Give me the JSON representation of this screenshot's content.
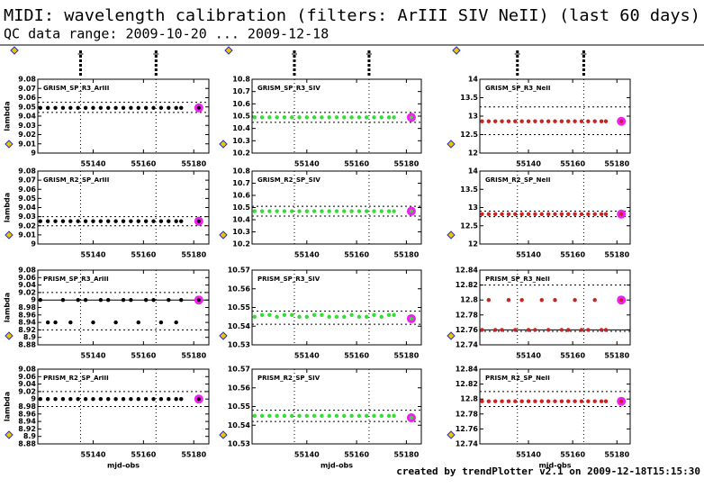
{
  "title": "MIDI: wavelength calibration (filters: ArIII SIV NeII) (last 60 days)",
  "subtitle": "QC data range: 2009-10-20 ... 2009-12-18",
  "footer": "created by trendPlotter v2.1 on 2009-12-18T15:15:30",
  "chart_data": [
    {
      "type": "scatter",
      "label": "GRISM_SP_R3_ArIII",
      "ylabel": "lambda",
      "color": "#000000",
      "latest_color": "#ee22ee",
      "x": [
        55119,
        55122,
        55125,
        55128,
        55131,
        55134,
        55137,
        55140,
        55143,
        55146,
        55149,
        55152,
        55155,
        55158,
        55161,
        55164,
        55167,
        55170,
        55173,
        55175,
        55182
      ],
      "values": [
        9.049,
        9.049,
        9.049,
        9.049,
        9.049,
        9.049,
        9.049,
        9.049,
        9.049,
        9.049,
        9.049,
        9.049,
        9.049,
        9.049,
        9.049,
        9.049,
        9.049,
        9.049,
        9.049,
        9.049,
        9.049
      ],
      "xlim": [
        55118,
        55186
      ],
      "xticks": [
        55140,
        55160,
        55180
      ],
      "ylim": [
        9,
        9.08
      ],
      "yticks": [
        9,
        9.01,
        9.02,
        9.03,
        9.04,
        9.05,
        9.06,
        9.07,
        9.08
      ],
      "limits": [
        9.044,
        9.055
      ],
      "vlines": [
        55135,
        55165
      ]
    },
    {
      "type": "scatter",
      "label": "GRISM_SP_R3_SIV",
      "color": "#33dd33",
      "latest_color": "#ee22ee",
      "x": [
        55119,
        55122,
        55125,
        55128,
        55131,
        55134,
        55137,
        55140,
        55143,
        55146,
        55149,
        55152,
        55155,
        55158,
        55161,
        55164,
        55167,
        55170,
        55173,
        55175,
        55182
      ],
      "values": [
        10.49,
        10.49,
        10.49,
        10.49,
        10.49,
        10.49,
        10.49,
        10.49,
        10.49,
        10.49,
        10.49,
        10.49,
        10.49,
        10.49,
        10.49,
        10.49,
        10.49,
        10.49,
        10.49,
        10.49,
        10.49
      ],
      "xlim": [
        55118,
        55186
      ],
      "xticks": [
        55140,
        55160,
        55180
      ],
      "ylim": [
        10.2,
        10.8
      ],
      "yticks": [
        10.2,
        10.3,
        10.4,
        10.5,
        10.6,
        10.7,
        10.8
      ],
      "limits": [
        10.45,
        10.53
      ],
      "vlines": [
        55135,
        55165
      ]
    },
    {
      "type": "scatter",
      "label": "GRISM_SP_R3_NeII",
      "color": "#cc2222",
      "latest_color": "#ee22ee",
      "x": [
        55119,
        55122,
        55125,
        55128,
        55131,
        55134,
        55137,
        55140,
        55143,
        55146,
        55149,
        55152,
        55155,
        55158,
        55161,
        55164,
        55167,
        55170,
        55173,
        55175,
        55182
      ],
      "values": [
        12.86,
        12.86,
        12.86,
        12.86,
        12.86,
        12.86,
        12.86,
        12.86,
        12.86,
        12.86,
        12.86,
        12.86,
        12.86,
        12.86,
        12.86,
        12.86,
        12.86,
        12.86,
        12.86,
        12.86,
        12.86
      ],
      "xlim": [
        55118,
        55186
      ],
      "xticks": [
        55140,
        55160,
        55180
      ],
      "ylim": [
        12,
        14
      ],
      "yticks": [
        12,
        12.5,
        13,
        13.5,
        14
      ],
      "limits": [
        12.5,
        13.25
      ],
      "vlines": [
        55135,
        55165
      ]
    },
    {
      "type": "scatter",
      "label": "GRISM_R2_SP_ArIII",
      "ylabel": "lambda",
      "color": "#000000",
      "latest_color": "#ee22ee",
      "x": [
        55119,
        55122,
        55125,
        55128,
        55131,
        55134,
        55137,
        55140,
        55143,
        55146,
        55149,
        55152,
        55155,
        55158,
        55161,
        55164,
        55167,
        55170,
        55173,
        55175,
        55182
      ],
      "values": [
        9.025,
        9.025,
        9.025,
        9.025,
        9.025,
        9.025,
        9.025,
        9.025,
        9.025,
        9.025,
        9.025,
        9.025,
        9.025,
        9.025,
        9.025,
        9.025,
        9.025,
        9.025,
        9.025,
        9.025,
        9.025
      ],
      "xlim": [
        55118,
        55186
      ],
      "xticks": [
        55140,
        55160,
        55180
      ],
      "ylim": [
        9,
        9.08
      ],
      "yticks": [
        9,
        9.01,
        9.02,
        9.03,
        9.04,
        9.05,
        9.06,
        9.07,
        9.08
      ],
      "limits": [
        9.02,
        9.03
      ],
      "vlines": [
        55135,
        55165
      ]
    },
    {
      "type": "scatter",
      "label": "GRISM_R2_SP_SIV",
      "color": "#33dd33",
      "latest_color": "#ee22ee",
      "x": [
        55119,
        55122,
        55125,
        55128,
        55131,
        55134,
        55137,
        55140,
        55143,
        55146,
        55149,
        55152,
        55155,
        55158,
        55161,
        55164,
        55167,
        55170,
        55173,
        55175,
        55182
      ],
      "values": [
        10.47,
        10.47,
        10.47,
        10.47,
        10.47,
        10.47,
        10.47,
        10.47,
        10.47,
        10.47,
        10.47,
        10.47,
        10.47,
        10.47,
        10.47,
        10.47,
        10.47,
        10.47,
        10.47,
        10.47,
        10.47
      ],
      "xlim": [
        55118,
        55186
      ],
      "xticks": [
        55140,
        55160,
        55180
      ],
      "ylim": [
        10.2,
        10.8
      ],
      "yticks": [
        10.2,
        10.3,
        10.4,
        10.5,
        10.6,
        10.7,
        10.8
      ],
      "limits": [
        10.43,
        10.51
      ],
      "vlines": [
        55135,
        55165
      ]
    },
    {
      "type": "scatter",
      "label": "GRISM_R2_SP_NeII",
      "color": "#cc2222",
      "latest_color": "#ee22ee",
      "x": [
        55119,
        55122,
        55125,
        55128,
        55131,
        55134,
        55137,
        55140,
        55143,
        55146,
        55149,
        55152,
        55155,
        55158,
        55161,
        55164,
        55167,
        55170,
        55173,
        55175,
        55182
      ],
      "values": [
        12.82,
        12.82,
        12.82,
        12.82,
        12.82,
        12.82,
        12.82,
        12.82,
        12.82,
        12.82,
        12.82,
        12.82,
        12.82,
        12.82,
        12.82,
        12.82,
        12.82,
        12.82,
        12.82,
        12.82,
        12.82
      ],
      "xlim": [
        55118,
        55186
      ],
      "xticks": [
        55140,
        55160,
        55180
      ],
      "ylim": [
        12,
        14
      ],
      "yticks": [
        12,
        12.5,
        13,
        13.5,
        14
      ],
      "limits": [
        12.75,
        12.9
      ],
      "vlines": [
        55135,
        55165
      ]
    },
    {
      "type": "scatter",
      "label": "PRISM_SP_R3_ArIII",
      "ylabel": "lambda",
      "color": "#000000",
      "latest_color": "#ee22ee",
      "x": [
        55119,
        55122,
        55125,
        55128,
        55131,
        55134,
        55137,
        55140,
        55143,
        55146,
        55149,
        55152,
        55155,
        55158,
        55161,
        55164,
        55167,
        55170,
        55173,
        55175,
        55182
      ],
      "values": [
        9,
        8.94,
        8.94,
        9,
        8.94,
        9,
        9,
        8.94,
        9,
        9,
        8.94,
        9,
        9,
        8.94,
        9,
        9,
        8.94,
        9,
        8.94,
        9,
        9
      ],
      "xlim": [
        55118,
        55186
      ],
      "xticks": [
        55140,
        55160,
        55180
      ],
      "ylim": [
        8.88,
        9.08
      ],
      "yticks": [
        8.88,
        8.9,
        8.92,
        8.94,
        8.96,
        8.98,
        9,
        9.02,
        9.04,
        9.06,
        9.08
      ],
      "ref": 9,
      "limits": [
        8.92,
        9.02
      ],
      "vlines": [
        55135,
        55165
      ]
    },
    {
      "type": "scatter",
      "label": "PRISM_SP_R3_SIV",
      "color": "#33dd33",
      "latest_color": "#ee22ee",
      "x": [
        55119,
        55122,
        55125,
        55128,
        55131,
        55134,
        55137,
        55140,
        55143,
        55146,
        55149,
        55152,
        55155,
        55158,
        55161,
        55164,
        55167,
        55170,
        55173,
        55175,
        55182
      ],
      "values": [
        10.545,
        10.546,
        10.546,
        10.545,
        10.546,
        10.546,
        10.545,
        10.545,
        10.546,
        10.546,
        10.545,
        10.545,
        10.545,
        10.546,
        10.545,
        10.545,
        10.546,
        10.545,
        10.546,
        10.546,
        10.544
      ],
      "xlim": [
        55118,
        55186
      ],
      "xticks": [
        55140,
        55160,
        55180
      ],
      "ylim": [
        10.53,
        10.57
      ],
      "yticks": [
        10.53,
        10.54,
        10.55,
        10.56,
        10.57
      ],
      "limits": [
        10.541,
        10.548
      ],
      "vlines": [
        55135,
        55165
      ]
    },
    {
      "type": "scatter",
      "label": "PRISM_SP_R3_NeII",
      "color": "#cc2222",
      "latest_color": "#ee22ee",
      "x": [
        55119,
        55122,
        55125,
        55128,
        55131,
        55134,
        55137,
        55140,
        55143,
        55146,
        55149,
        55152,
        55155,
        55158,
        55161,
        55164,
        55167,
        55170,
        55173,
        55175,
        55182
      ],
      "values": [
        12.76,
        12.8,
        12.76,
        12.76,
        12.8,
        12.76,
        12.8,
        12.76,
        12.76,
        12.8,
        12.76,
        12.8,
        12.76,
        12.76,
        12.8,
        12.76,
        12.76,
        12.8,
        12.76,
        12.76,
        12.8
      ],
      "xlim": [
        55118,
        55186
      ],
      "xticks": [
        55140,
        55160,
        55180
      ],
      "ylim": [
        12.74,
        12.84
      ],
      "yticks": [
        12.74,
        12.76,
        12.78,
        12.8,
        12.82,
        12.84
      ],
      "ref": 12.76,
      "limits": [
        12.758,
        12.82
      ],
      "vlines": [
        55135,
        55165
      ]
    },
    {
      "type": "scatter",
      "label": "PRISM_R2_SP_ArIII",
      "ylabel": "lambda",
      "xlabel": "mjd-obs",
      "color": "#000000",
      "latest_color": "#ee22ee",
      "x": [
        55119,
        55122,
        55125,
        55128,
        55131,
        55134,
        55137,
        55140,
        55143,
        55146,
        55149,
        55152,
        55155,
        55158,
        55161,
        55164,
        55167,
        55170,
        55173,
        55175,
        55182
      ],
      "values": [
        9,
        9,
        9,
        9,
        9,
        9,
        9,
        9,
        9,
        9,
        9,
        9,
        9,
        9,
        9,
        9,
        9,
        9,
        9,
        9,
        9
      ],
      "xlim": [
        55118,
        55186
      ],
      "xticks": [
        55140,
        55160,
        55180
      ],
      "ylim": [
        8.88,
        9.08
      ],
      "yticks": [
        8.88,
        8.9,
        8.92,
        8.94,
        8.96,
        8.98,
        9,
        9.02,
        9.04,
        9.06,
        9.08
      ],
      "limits": [
        8.98,
        9.02
      ],
      "vlines": [
        55135,
        55165
      ]
    },
    {
      "type": "scatter",
      "label": "PRISM_R2_SP_SIV",
      "xlabel": "mjd-obs",
      "color": "#33dd33",
      "latest_color": "#ee22ee",
      "x": [
        55119,
        55122,
        55125,
        55128,
        55131,
        55134,
        55137,
        55140,
        55143,
        55146,
        55149,
        55152,
        55155,
        55158,
        55161,
        55164,
        55167,
        55170,
        55173,
        55175,
        55182
      ],
      "values": [
        10.545,
        10.545,
        10.545,
        10.545,
        10.545,
        10.545,
        10.545,
        10.545,
        10.545,
        10.545,
        10.545,
        10.545,
        10.545,
        10.545,
        10.545,
        10.545,
        10.545,
        10.545,
        10.545,
        10.545,
        10.544
      ],
      "xlim": [
        55118,
        55186
      ],
      "xticks": [
        55140,
        55160,
        55180
      ],
      "ylim": [
        10.53,
        10.57
      ],
      "yticks": [
        10.53,
        10.54,
        10.55,
        10.56,
        10.57
      ],
      "limits": [
        10.542,
        10.548
      ],
      "vlines": [
        55135,
        55165
      ]
    },
    {
      "type": "scatter",
      "label": "PRISM_R2_SP_NeII",
      "xlabel": "mjd-obs",
      "color": "#cc2222",
      "latest_color": "#ee22ee",
      "x": [
        55119,
        55122,
        55125,
        55128,
        55131,
        55134,
        55137,
        55140,
        55143,
        55146,
        55149,
        55152,
        55155,
        55158,
        55161,
        55164,
        55167,
        55170,
        55173,
        55175,
        55182
      ],
      "values": [
        12.797,
        12.797,
        12.797,
        12.797,
        12.797,
        12.797,
        12.797,
        12.797,
        12.797,
        12.797,
        12.797,
        12.797,
        12.797,
        12.797,
        12.797,
        12.797,
        12.797,
        12.797,
        12.797,
        12.797,
        12.797
      ],
      "xlim": [
        55118,
        55186
      ],
      "xticks": [
        55140,
        55160,
        55180
      ],
      "ylim": [
        12.74,
        12.84
      ],
      "yticks": [
        12.74,
        12.76,
        12.78,
        12.8,
        12.82,
        12.84
      ],
      "limits": [
        12.79,
        12.81
      ],
      "vlines": [
        55135,
        55165
      ]
    }
  ]
}
